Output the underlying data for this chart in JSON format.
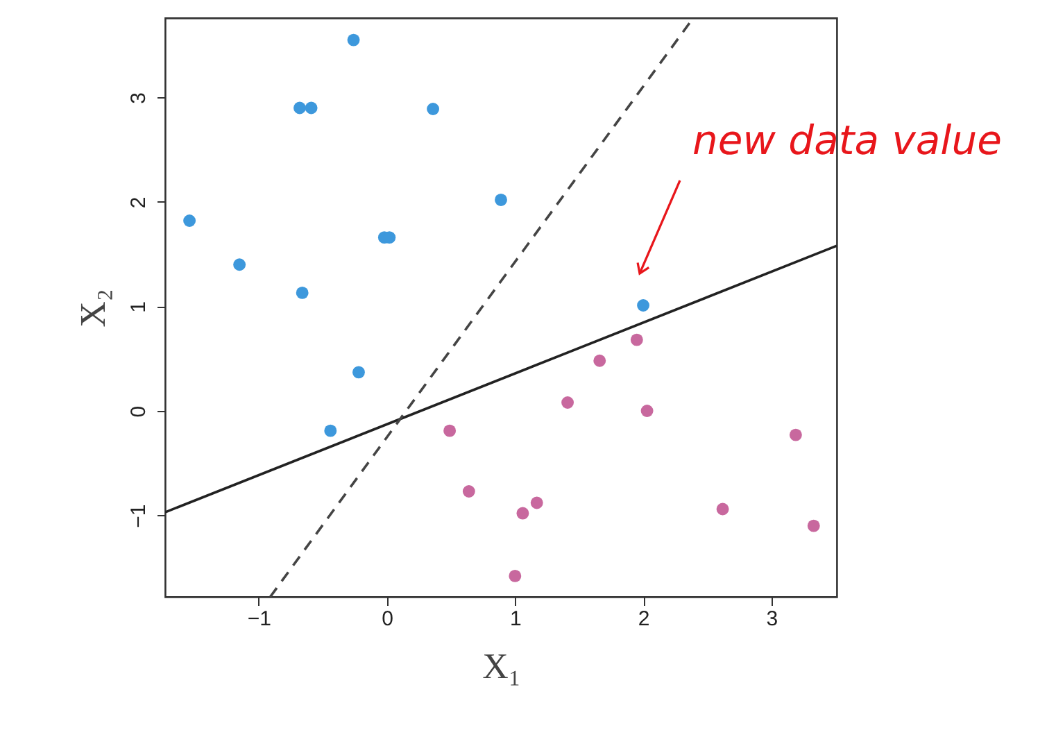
{
  "chart_data": {
    "type": "scatter",
    "xlabel": "X₁",
    "ylabel": "X₂",
    "xlim": [
      -1.73,
      3.51
    ],
    "ylim": [
      -1.78,
      3.76
    ],
    "xticks": [
      -1,
      0,
      1,
      2,
      3
    ],
    "yticks": [
      -1,
      0,
      1,
      2,
      3
    ],
    "grid": false,
    "marker": "circle",
    "series": [
      {
        "color": "#3d98dc",
        "x": [
          -0.26,
          -0.68,
          -0.59,
          0.36,
          -1.54,
          0.89,
          -1.15,
          -0.02,
          0.02,
          -0.66,
          -0.22,
          -0.44,
          2.0
        ],
        "values": [
          3.55,
          2.9,
          2.9,
          2.89,
          1.82,
          2.02,
          1.4,
          1.66,
          1.66,
          1.13,
          0.37,
          -0.19,
          1.01
        ]
      },
      {
        "color": "#c8689e",
        "x": [
          1.95,
          1.66,
          1.41,
          2.03,
          0.49,
          0.64,
          1.17,
          1.06,
          1.0,
          2.62,
          3.19,
          3.33
        ],
        "values": [
          0.68,
          0.48,
          0.08,
          0.0,
          -0.19,
          -0.77,
          -0.88,
          -0.98,
          -1.58,
          -0.94,
          -0.23,
          -1.1
        ]
      },
      {
        "type": "line",
        "color": "#222222",
        "line_style": "solid",
        "marker": "none",
        "x": [
          -1.73,
          3.51
        ],
        "values": [
          -0.97,
          1.58
        ]
      },
      {
        "type": "line",
        "color": "#444444",
        "line_style": "dashed",
        "marker": "none",
        "x": [
          -0.91,
          2.39
        ],
        "values": [
          -1.78,
          3.76
        ]
      }
    ],
    "annotations": [
      "new data value"
    ]
  }
}
